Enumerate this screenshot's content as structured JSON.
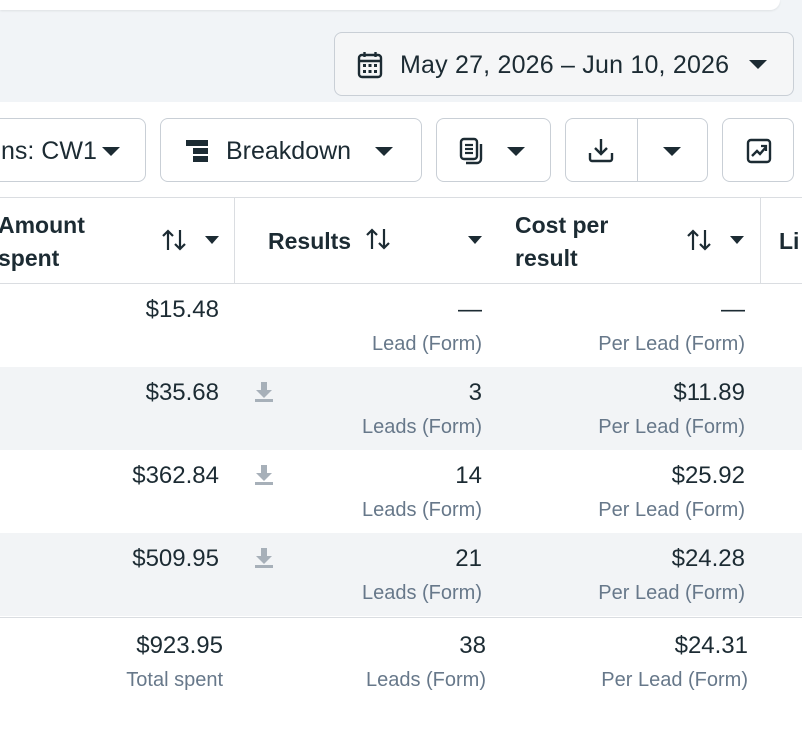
{
  "date_range": {
    "label": "May 27, 2026 – Jun 10, 2026"
  },
  "toolbar": {
    "campaigns_label": "ns: CW1",
    "breakdown_label": "Breakdown"
  },
  "columns": {
    "amount_spent": "Amount spent",
    "amount_line1": "Amount",
    "amount_line2": "spent",
    "results": "Results",
    "cost_line1": "Cost per",
    "cost_line2": "result",
    "next": "Li"
  },
  "rows": [
    {
      "amount": "$15.48",
      "results": "—",
      "results_sub": "Lead (Form)",
      "cost": "—",
      "cost_sub": "Per Lead (Form)",
      "download": false
    },
    {
      "amount": "$35.68",
      "results": "3",
      "results_sub": "Leads (Form)",
      "cost": "$11.89",
      "cost_sub": "Per Lead (Form)",
      "download": true
    },
    {
      "amount": "$362.84",
      "results": "14",
      "results_sub": "Leads (Form)",
      "cost": "$25.92",
      "cost_sub": "Per Lead (Form)",
      "download": true
    },
    {
      "amount": "$509.95",
      "results": "21",
      "results_sub": "Leads (Form)",
      "cost": "$24.28",
      "cost_sub": "Per Lead (Form)",
      "download": true
    }
  ],
  "totals": {
    "amount": "$923.95",
    "amount_sub": "Total spent",
    "results": "38",
    "results_sub": "Leads (Form)",
    "cost": "$24.31",
    "cost_sub": "Per Lead (Form)"
  },
  "icons": {
    "date": "calendar-icon",
    "breakdown": "breakdown-icon",
    "columns": "columns-icon",
    "export": "download-icon",
    "chart": "chart-trend-icon",
    "sort": "sort-arrows-icon"
  }
}
